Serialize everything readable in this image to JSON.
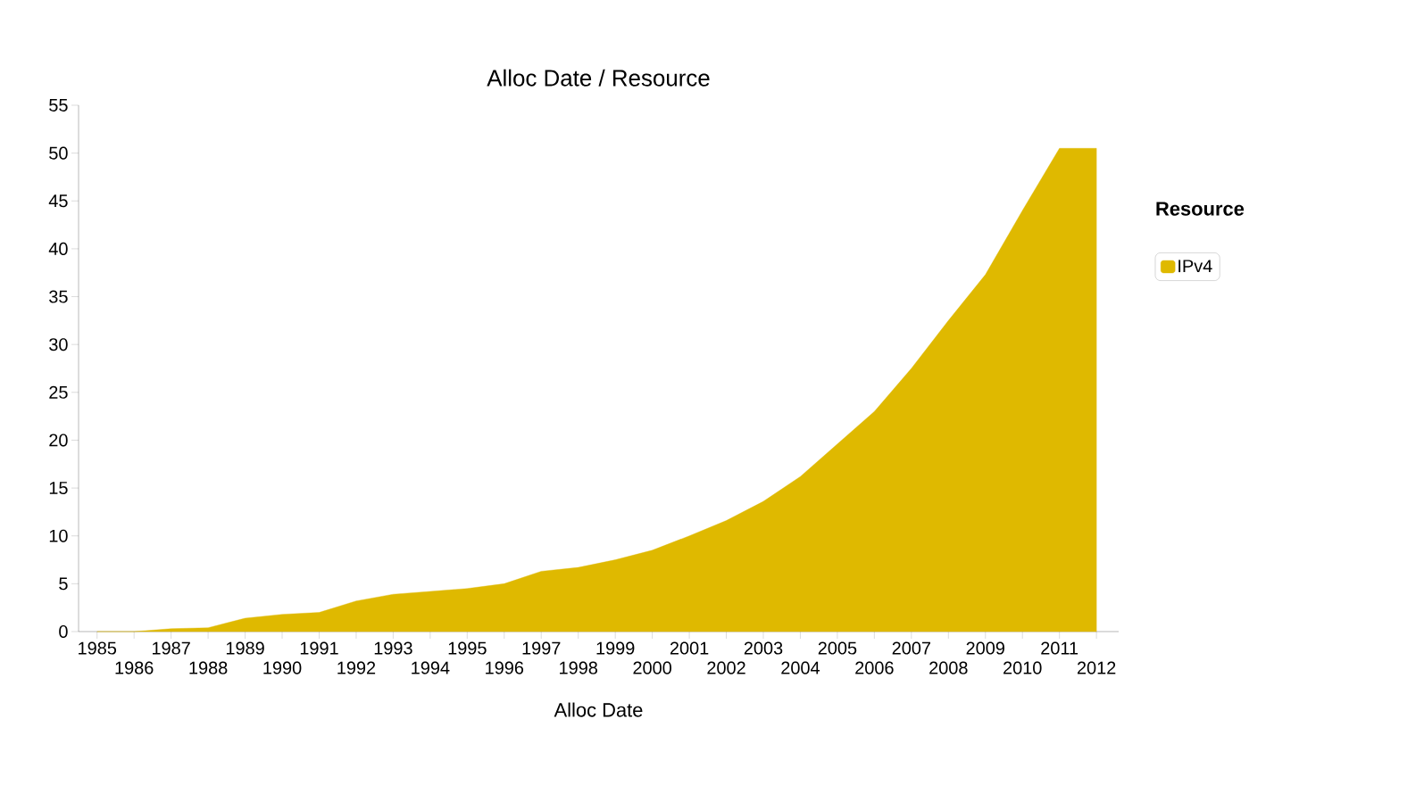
{
  "chart_data": {
    "type": "area",
    "title": "Alloc Date / Resource",
    "xlabel": "Alloc Date",
    "legend_title": "Resource",
    "categories": [
      "1985",
      "1986",
      "1987",
      "1988",
      "1989",
      "1990",
      "1991",
      "1992",
      "1993",
      "1994",
      "1995",
      "1996",
      "1997",
      "1998",
      "1999",
      "2000",
      "2001",
      "2002",
      "2003",
      "2004",
      "2005",
      "2006",
      "2007",
      "2008",
      "2009",
      "2010",
      "2011",
      "2012"
    ],
    "series": [
      {
        "name": "IPv4",
        "color": "#dfb900",
        "values": [
          0,
          0,
          0.3,
          0.4,
          1.4,
          1.8,
          2.0,
          3.2,
          3.9,
          4.2,
          4.5,
          5.0,
          6.3,
          6.7,
          7.5,
          8.5,
          10.0,
          11.6,
          13.6,
          16.2,
          19.6,
          23.0,
          27.5,
          32.5,
          37.3,
          44.0,
          50.5,
          50.5
        ]
      }
    ],
    "ylim": [
      0,
      55
    ],
    "yticks": [
      0,
      5,
      10,
      15,
      20,
      25,
      30,
      35,
      40,
      45,
      50,
      55
    ],
    "legend": "right",
    "grid": false
  }
}
